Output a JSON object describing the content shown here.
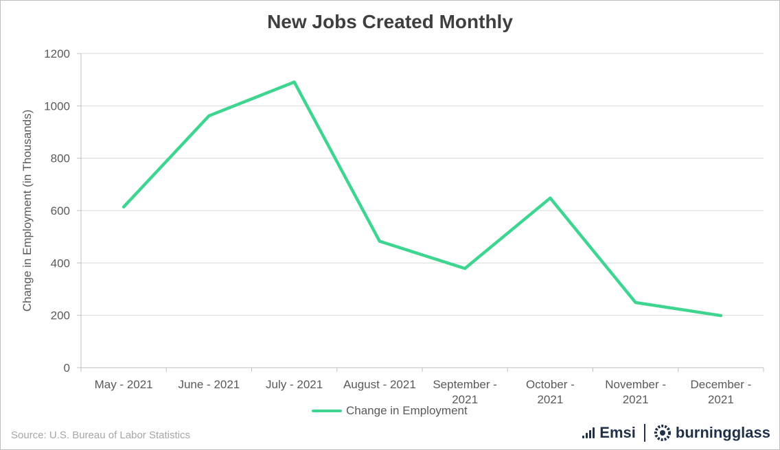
{
  "chart_data": {
    "type": "line",
    "title": "New Jobs Created Monthly",
    "ylabel": "Change in Employment (in Thousands)",
    "xlabel": "",
    "categories": [
      [
        "May - 2021"
      ],
      [
        "June - 2021"
      ],
      [
        "July - 2021"
      ],
      [
        "August - 2021"
      ],
      [
        "September -",
        "2021"
      ],
      [
        "October -",
        "2021"
      ],
      [
        "November -",
        "2021"
      ],
      [
        "December -",
        "2021"
      ]
    ],
    "series": [
      {
        "name": "Change in Employment",
        "color": "#3dd58f",
        "values": [
          614,
          962,
          1091,
          483,
          379,
          648,
          249,
          199
        ]
      }
    ],
    "ylim": [
      0,
      1200
    ],
    "yticks": [
      0,
      200,
      400,
      600,
      800,
      1000,
      1200
    ],
    "grid": true,
    "legend": "bottom"
  },
  "footer": {
    "source": "Source:  U.S. Bureau of Labor Statistics",
    "logo_emsi": "Emsi",
    "logo_burningglass": "burningglass",
    "emsi_icon": "bar-chart-icon",
    "burningglass_icon": "gear-ring-icon"
  }
}
